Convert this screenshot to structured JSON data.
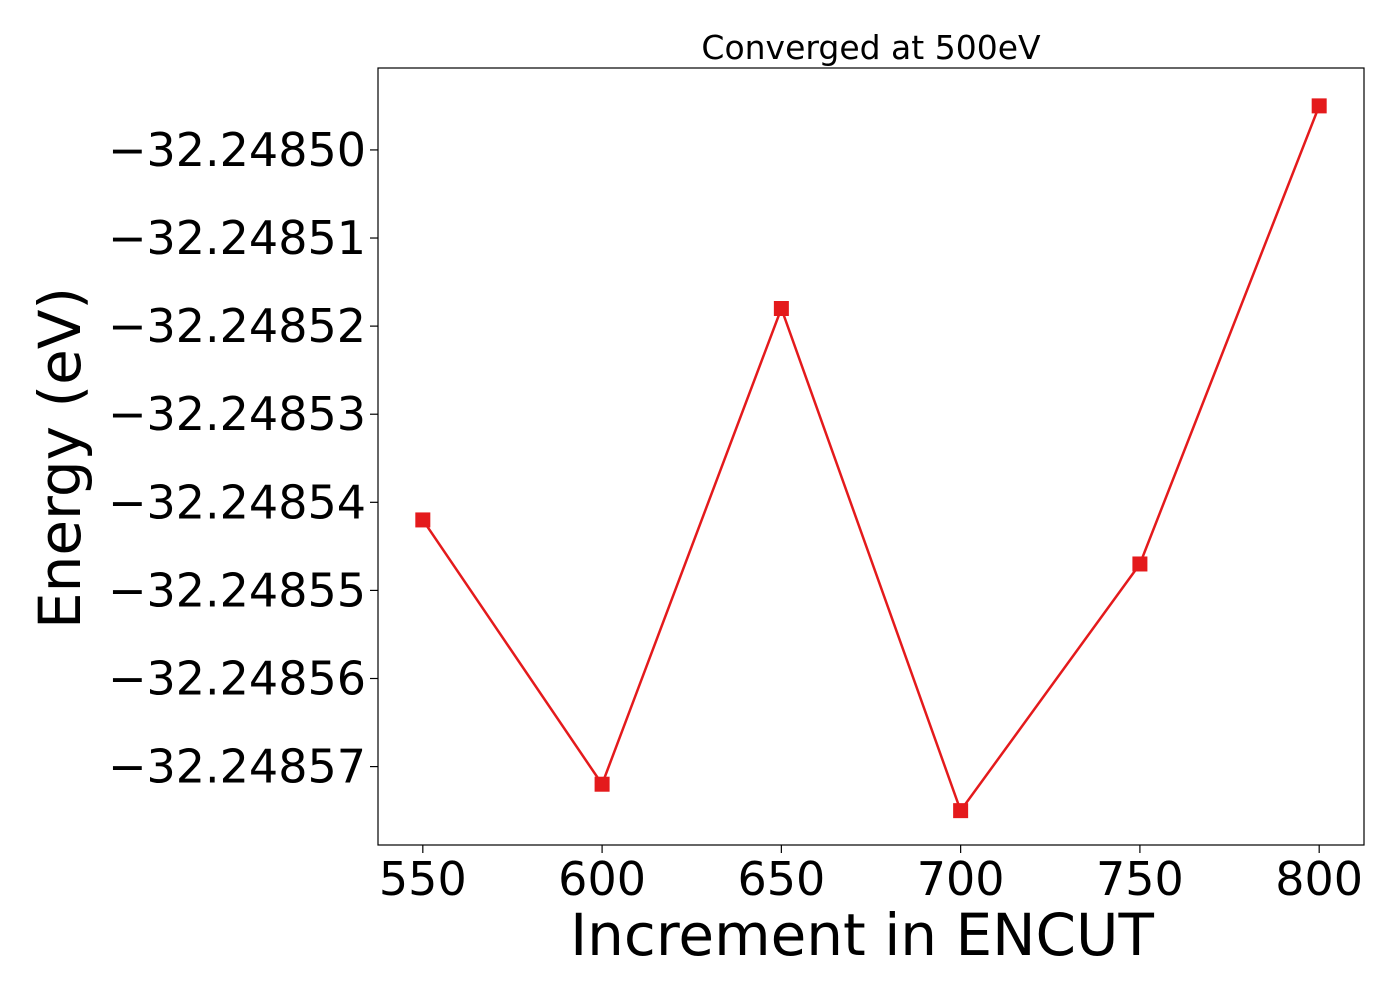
{
  "chart_data": {
    "type": "line",
    "title": "Converged at 500eV",
    "xlabel": "Increment in ENCUT",
    "ylabel": "Energy (eV)",
    "x": [
      550,
      600,
      650,
      700,
      750,
      800
    ],
    "series": [
      {
        "values": [
          -32.248542,
          -32.248572,
          -32.248518,
          -32.248575,
          -32.248547,
          -32.248495
        ],
        "color": "#e41a1c",
        "marker": "square"
      }
    ],
    "xticks": [
      550,
      600,
      650,
      700,
      750,
      800
    ],
    "xtick_labels": [
      "550",
      "600",
      "650",
      "700",
      "750",
      "800"
    ],
    "yticks": [
      -32.2485,
      -32.24851,
      -32.24852,
      -32.24853,
      -32.24854,
      -32.24855,
      -32.24856,
      -32.24857
    ],
    "ytick_labels": [
      "−32.24850",
      "−32.24851",
      "−32.24852",
      "−32.24853",
      "−32.24854",
      "−32.24855",
      "−32.24856",
      "−32.24857"
    ],
    "xlim": [
      537.5,
      812.5
    ],
    "ylim": [
      -32.2485789,
      -32.2484907
    ],
    "grid": false,
    "legend": "none"
  }
}
